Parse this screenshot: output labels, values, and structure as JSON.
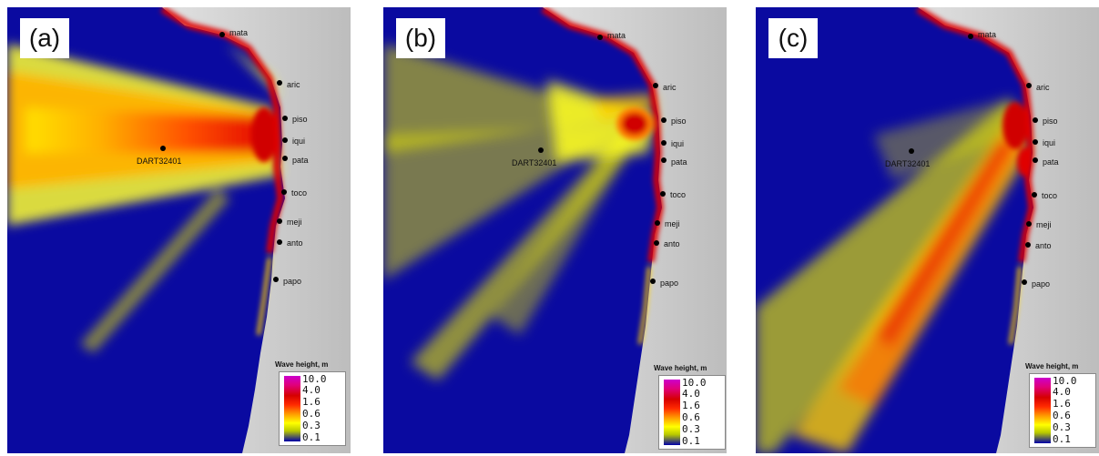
{
  "panels": [
    {
      "letter": "(a)",
      "dart_label": "DART32401"
    },
    {
      "letter": "(b)",
      "dart_label": "DART32401"
    },
    {
      "letter": "(c)",
      "dart_label": "DART32401"
    }
  ],
  "towns": [
    "mata",
    "aric",
    "piso",
    "iqui",
    "pata",
    "toco",
    "meji",
    "anto",
    "papo"
  ],
  "legend": {
    "title": "Wave height, m",
    "ticks": [
      "10.0",
      "4.0",
      "1.6",
      "0.6",
      "0.3",
      "0.1"
    ]
  },
  "colors": {
    "ocean": "#0a0aa0",
    "land": "#d7d7d7",
    "low": "#ffff00",
    "mid": "#ff8c00",
    "high": "#e00000",
    "max": "#cc00cc"
  }
}
